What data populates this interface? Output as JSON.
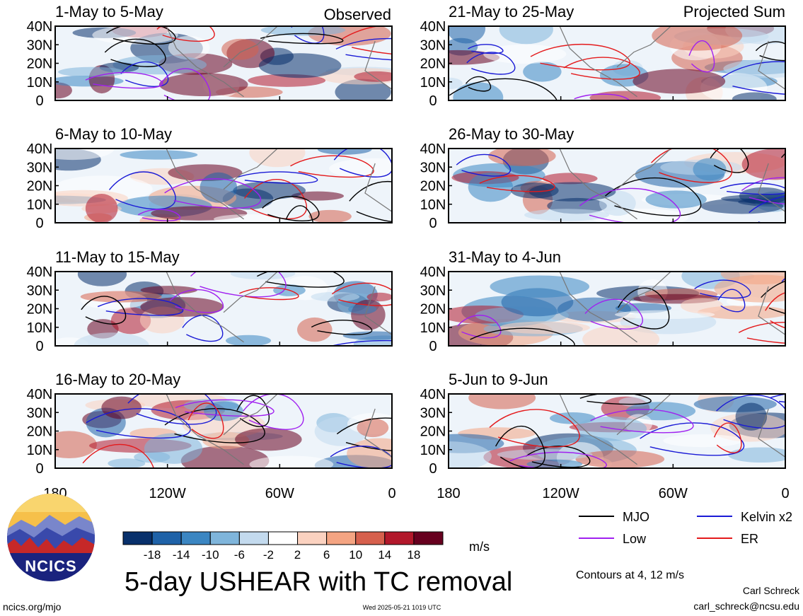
{
  "figure": {
    "main_title": "5-day USHEAR with TC removal",
    "units": "m/s",
    "contour_note": "Contours at 4, 12 m/s",
    "source_url": "ncics.org/mjo",
    "timestamp": "Wed 2025-05-21 1019 UTC",
    "author": "Carl Schreck",
    "email": "carl_schreck@ncsu.edu",
    "logo_text": "NCICS",
    "corner_left": "Observed",
    "corner_right": "Projected Sum"
  },
  "chart_data": {
    "type": "heatmap",
    "variable": "USHEAR",
    "units": "m/s",
    "colorbar": {
      "ticks": [
        "-18",
        "-14",
        "-10",
        "-6",
        "-2",
        "2",
        "6",
        "10",
        "14",
        "18"
      ],
      "colors": [
        "#08306b",
        "#1f62a8",
        "#3b86c2",
        "#7fb5db",
        "#c3daee",
        "#ffffff",
        "#fbd2c0",
        "#f4a482",
        "#d6604d",
        "#b2182b",
        "#67001f"
      ]
    },
    "x_axis": {
      "ticks": [
        "180",
        "120W",
        "60W",
        "0"
      ],
      "range": [
        "180",
        "0"
      ]
    },
    "y_axis": {
      "ticks": [
        "0",
        "10N",
        "20N",
        "30N",
        "40N"
      ],
      "range": [
        "0",
        "40N"
      ]
    },
    "legend": [
      {
        "label": "MJO",
        "color": "#000000"
      },
      {
        "label": "Kelvin x2",
        "color": "#1a1ad6"
      },
      {
        "label": "Low",
        "color": "#a020f0"
      },
      {
        "label": "ER",
        "color": "#e41a1c"
      }
    ],
    "panels": [
      {
        "title": "1-May to 5-May",
        "group": "Observed"
      },
      {
        "title": "6-May to 10-May",
        "group": "Observed"
      },
      {
        "title": "11-May to 15-May",
        "group": "Observed"
      },
      {
        "title": "16-May to 20-May",
        "group": "Observed"
      },
      {
        "title": "21-May to 25-May",
        "group": "Projected Sum"
      },
      {
        "title": "26-May to 30-May",
        "group": "Projected Sum"
      },
      {
        "title": "31-May to 4-Jun",
        "group": "Projected Sum"
      },
      {
        "title": "5-Jun to 9-Jun",
        "group": "Projected Sum"
      }
    ]
  }
}
